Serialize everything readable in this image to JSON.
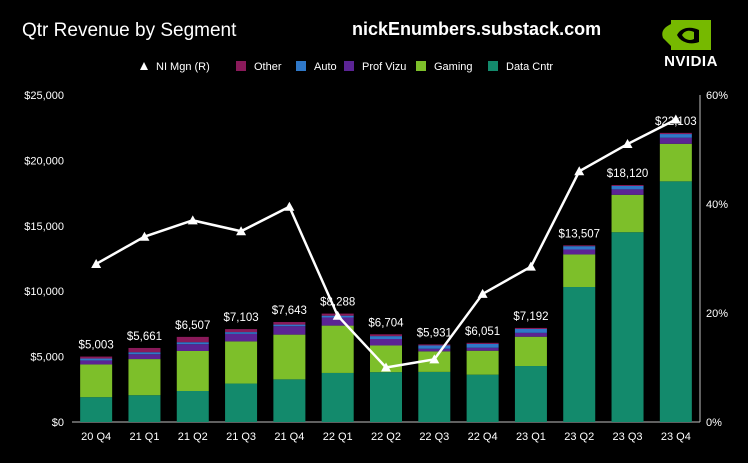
{
  "header": {
    "title": "Qtr Revenue by Segment",
    "source": "nickEnumbers.substack.com",
    "logo_text": "NVIDIA"
  },
  "colors": {
    "data_cntr": "#138a6c",
    "gaming": "#7dbf2a",
    "prof_vizu": "#5b2494",
    "auto": "#2f78c8",
    "other": "#8a1a5a",
    "margin_line": "#ffffff",
    "brand_green": "#76b900"
  },
  "chart_data": {
    "type": "bar",
    "stacked": true,
    "categories": [
      "20 Q4",
      "21 Q1",
      "21 Q2",
      "21 Q3",
      "21 Q4",
      "22 Q1",
      "22 Q2",
      "22 Q3",
      "22 Q4",
      "23 Q1",
      "23 Q2",
      "23 Q3",
      "23 Q4"
    ],
    "series": [
      {
        "name": "Data Cntr",
        "key": "data_cntr",
        "values": [
          1900,
          2050,
          2370,
          2940,
          3260,
          3750,
          3810,
          3830,
          3620,
          4280,
          10320,
          14510,
          18400
        ]
      },
      {
        "name": "Gaming",
        "key": "gaming",
        "values": [
          2500,
          2760,
          3060,
          3220,
          3420,
          3620,
          2040,
          1570,
          1830,
          2240,
          2490,
          2860,
          2870
        ]
      },
      {
        "name": "Prof Vizu",
        "key": "prof_vizu",
        "values": [
          307,
          372,
          519,
          577,
          643,
          622,
          496,
          200,
          226,
          295,
          379,
          416,
          463
        ]
      },
      {
        "name": "Auto",
        "key": "auto",
        "values": [
          145,
          154,
          152,
          135,
          125,
          138,
          220,
          251,
          294,
          296,
          253,
          261,
          281
        ]
      },
      {
        "name": "Other",
        "key": "other",
        "values": [
          151,
          325,
          406,
          231,
          195,
          158,
          138,
          80,
          81,
          81,
          65,
          73,
          89
        ]
      }
    ],
    "totals": [
      5003,
      5661,
      6507,
      7103,
      7643,
      8288,
      6704,
      5931,
      6051,
      7192,
      13507,
      18120,
      22103
    ],
    "total_labels": [
      "$5,003",
      "$5,661",
      "$6,507",
      "$7,103",
      "$7,643",
      "$8,288",
      "$6,704",
      "$5,931",
      "$6,051",
      "$7,192",
      "$13,507",
      "$18,120",
      "$22,103"
    ],
    "line": {
      "name": "NI Mgn (R)",
      "values": [
        29,
        34,
        37,
        35,
        39.5,
        19.5,
        10,
        11.5,
        23.5,
        28.5,
        46,
        51,
        55.5
      ]
    },
    "ylim": [
      0,
      25000
    ],
    "yticks": [
      0,
      5000,
      10000,
      15000,
      20000,
      25000
    ],
    "ytick_labels": [
      "$0",
      "$5,000",
      "$10,000",
      "$15,000",
      "$20,000",
      "$25,000"
    ],
    "y2lim": [
      0,
      60
    ],
    "y2ticks": [
      0,
      20,
      40,
      60
    ],
    "y2tick_labels": [
      "0%",
      "20%",
      "40%",
      "60%"
    ],
    "legend": {
      "position": "top",
      "items": [
        {
          "label": "NI Mgn (R)",
          "type": "line"
        },
        {
          "label": "Other",
          "key": "other"
        },
        {
          "label": "Auto",
          "key": "auto"
        },
        {
          "label": "Prof Vizu",
          "key": "prof_vizu"
        },
        {
          "label": "Gaming",
          "key": "gaming"
        },
        {
          "label": "Data Cntr",
          "key": "data_cntr"
        }
      ]
    },
    "grid": false
  }
}
